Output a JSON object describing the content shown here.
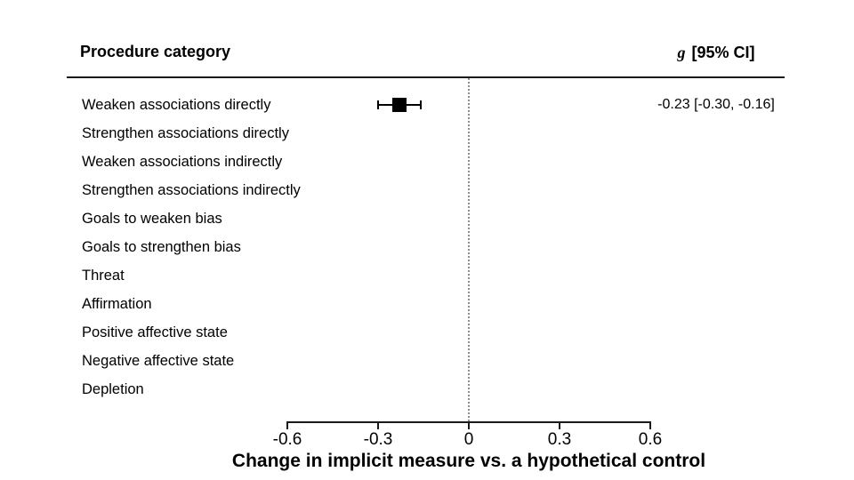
{
  "colors": {
    "background": "#ffffff",
    "text": "#000000",
    "rule": "#1a1a1a",
    "reference_line": "#8f8f8f",
    "marker": "#000000"
  },
  "chart_data": {
    "type": "scatter",
    "variant": "forest_plot",
    "column_headers": {
      "left": "Procedure category",
      "right_g": "g",
      "right_rest": "[95% CI]"
    },
    "categories": [
      "Weaken associations directly",
      "Strengthen associations directly",
      "Weaken associations indirectly",
      "Strengthen associations indirectly",
      "Goals to weaken bias",
      "Goals to strengthen bias",
      "Threat",
      "Affirmation",
      "Positive affective state",
      "Negative affective state",
      "Depletion"
    ],
    "estimates": [
      {
        "row": 0,
        "category": "Weaken associations directly",
        "g": -0.23,
        "ci_lower": -0.3,
        "ci_upper": -0.16,
        "label": "-0.23 [-0.30, -0.16]"
      }
    ],
    "x_axis": {
      "min": -0.6,
      "max": 0.6,
      "ticks": [
        -0.6,
        -0.3,
        0,
        0.3,
        0.6
      ],
      "tick_labels": [
        "-0.6",
        "-0.3",
        "0",
        "0.3",
        "0.6"
      ],
      "reference_line_x": 0,
      "title": "Change in implicit measure vs. a hypothetical control"
    },
    "layout": {
      "grid": false,
      "legend": "none",
      "reference_line_style": "dotted"
    }
  }
}
